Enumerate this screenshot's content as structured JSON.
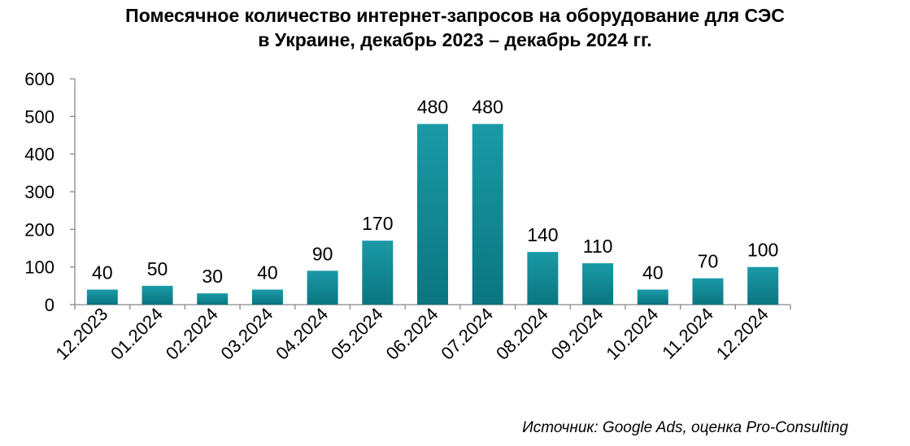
{
  "chart_data": {
    "type": "bar",
    "title_lines": [
      "Помесячное количество интернет-запросов на оборудование для СЭС",
      "в Украине, декабрь 2023 – декабрь 2024 гг."
    ],
    "categories": [
      "12.2023",
      "01.2024",
      "02.2024",
      "03.2024",
      "04.2024",
      "05.2024",
      "06.2024",
      "07.2024",
      "08.2024",
      "09.2024",
      "10.2024",
      "11.2024",
      "12.2024"
    ],
    "values": [
      40,
      50,
      30,
      40,
      90,
      170,
      480,
      480,
      140,
      110,
      40,
      70,
      100
    ],
    "data_labels": [
      "40",
      "50",
      "30",
      "40",
      "90",
      "170",
      "480",
      "480",
      "140",
      "110",
      "40",
      "70",
      "100"
    ],
    "ylim": [
      0,
      600
    ],
    "yticks": [
      "0",
      "100",
      "200",
      "300",
      "400",
      "500",
      "600"
    ],
    "xlabel": "",
    "ylabel": "",
    "grid": false,
    "bar_color": "#1a9aa6",
    "bar_color_dark": "#0b7580"
  },
  "source": "Источник: Google Ads, оценка Pro-Consulting"
}
